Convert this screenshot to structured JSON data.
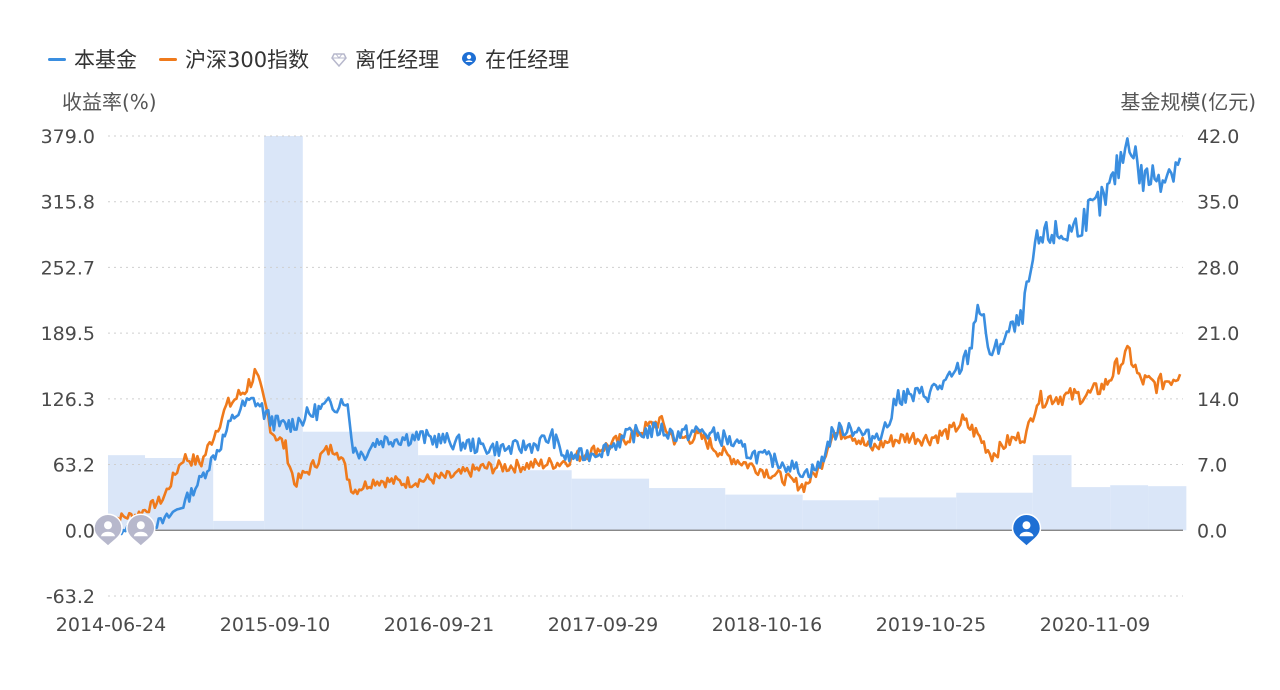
{
  "legend": {
    "fund": "本基金",
    "index": "沪深300指数",
    "former_manager": "离任经理",
    "current_manager": "在任经理"
  },
  "axis_titles": {
    "left": "收益率(%)",
    "right": "基金规模(亿元)"
  },
  "colors": {
    "fund": "#3a8ee0",
    "index": "#ef7a1c",
    "scale_bar": "#dae6f8",
    "former_manager": "#b7b8cc",
    "current_manager": "#1e6fd4",
    "grid": "#cfcfcf"
  },
  "chart_data": {
    "type": "line",
    "x_tick_labels": [
      "2014-06-24",
      "2015-09-10",
      "2016-09-21",
      "2017-09-29",
      "2018-10-16",
      "2019-10-25",
      "2020-11-09"
    ],
    "y_left": {
      "label": "收益率(%)",
      "ticks": [
        "379.0",
        "315.8",
        "252.7",
        "189.5",
        "126.3",
        "63.2",
        "0.0",
        "-63.2"
      ],
      "range": [
        -63.2,
        379.0
      ]
    },
    "y_right": {
      "label": "基金规模(亿元)",
      "ticks": [
        "42.0",
        "35.0",
        "28.0",
        "21.0",
        "14.0",
        "7.0",
        "0.0"
      ],
      "range": [
        -7.0,
        42.0
      ]
    },
    "grid": true,
    "legend_position": "top-left",
    "series": [
      {
        "name": "本基金",
        "kind": "line",
        "points": [
          [
            "2014-06-24",
            0
          ],
          [
            "2014-09-01",
            2
          ],
          [
            "2014-11-01",
            8
          ],
          [
            "2014-12-20",
            25
          ],
          [
            "2015-02-01",
            50
          ],
          [
            "2015-03-15",
            80
          ],
          [
            "2015-04-20",
            110
          ],
          [
            "2015-05-15",
            120
          ],
          [
            "2015-06-10",
            125
          ],
          [
            "2015-07-10",
            108
          ],
          [
            "2015-08-10",
            100
          ],
          [
            "2015-09-10",
            103
          ],
          [
            "2015-10-20",
            112
          ],
          [
            "2015-11-20",
            118
          ],
          [
            "2015-12-20",
            122
          ],
          [
            "2016-01-10",
            128
          ],
          [
            "2016-01-28",
            80
          ],
          [
            "2016-02-20",
            72
          ],
          [
            "2016-03-20",
            85
          ],
          [
            "2016-05-01",
            88
          ],
          [
            "2016-07-01",
            90
          ],
          [
            "2016-09-21",
            85
          ],
          [
            "2016-12-01",
            80
          ],
          [
            "2017-02-01",
            78
          ],
          [
            "2017-04-01",
            82
          ],
          [
            "2017-05-15",
            90
          ],
          [
            "2017-06-15",
            70
          ],
          [
            "2017-08-01",
            72
          ],
          [
            "2017-09-29",
            80
          ],
          [
            "2017-11-15",
            92
          ],
          [
            "2018-01-25",
            97
          ],
          [
            "2018-03-01",
            92
          ],
          [
            "2018-05-01",
            95
          ],
          [
            "2018-07-01",
            88
          ],
          [
            "2018-08-20",
            75
          ],
          [
            "2018-10-16",
            68
          ],
          [
            "2018-12-01",
            62
          ],
          [
            "2019-01-10",
            55
          ],
          [
            "2019-02-10",
            62
          ],
          [
            "2019-03-10",
            92
          ],
          [
            "2019-04-20",
            100
          ],
          [
            "2019-06-10",
            88
          ],
          [
            "2019-07-20",
            100
          ],
          [
            "2019-08-15",
            130
          ],
          [
            "2019-09-15",
            128
          ],
          [
            "2019-10-25",
            132
          ],
          [
            "2019-12-20",
            145
          ],
          [
            "2020-02-01",
            170
          ],
          [
            "2020-02-20",
            220
          ],
          [
            "2020-03-25",
            165
          ],
          [
            "2020-04-20",
            185
          ],
          [
            "2020-06-01",
            200
          ],
          [
            "2020-07-10",
            275
          ],
          [
            "2020-08-10",
            285
          ],
          [
            "2020-09-10",
            283
          ],
          [
            "2020-10-20",
            295
          ],
          [
            "2020-11-09",
            305
          ],
          [
            "2020-12-20",
            318
          ],
          [
            "2021-01-20",
            350
          ],
          [
            "2021-02-15",
            379
          ],
          [
            "2021-03-15",
            338
          ],
          [
            "2021-04-20",
            340
          ],
          [
            "2021-05-20",
            345
          ],
          [
            "2021-06-15",
            358
          ]
        ]
      },
      {
        "name": "沪深300指数",
        "kind": "line",
        "points": [
          [
            "2014-06-24",
            10
          ],
          [
            "2014-09-01",
            15
          ],
          [
            "2014-11-01",
            30
          ],
          [
            "2014-12-20",
            70
          ],
          [
            "2015-02-01",
            65
          ],
          [
            "2015-04-01",
            118
          ],
          [
            "2015-05-15",
            135
          ],
          [
            "2015-06-08",
            150
          ],
          [
            "2015-06-25",
            130
          ],
          [
            "2015-07-20",
            95
          ],
          [
            "2015-08-20",
            80
          ],
          [
            "2015-09-10",
            45
          ],
          [
            "2015-10-20",
            60
          ],
          [
            "2015-11-20",
            75
          ],
          [
            "2015-12-20",
            80
          ],
          [
            "2016-01-28",
            38
          ],
          [
            "2016-03-20",
            48
          ],
          [
            "2016-06-01",
            46
          ],
          [
            "2016-09-21",
            52
          ],
          [
            "2016-12-01",
            60
          ],
          [
            "2017-03-01",
            62
          ],
          [
            "2017-06-01",
            65
          ],
          [
            "2017-09-29",
            82
          ],
          [
            "2017-11-15",
            90
          ],
          [
            "2018-01-25",
            105
          ],
          [
            "2018-03-01",
            88
          ],
          [
            "2018-05-01",
            90
          ],
          [
            "2018-07-01",
            72
          ],
          [
            "2018-09-01",
            62
          ],
          [
            "2018-10-16",
            55
          ],
          [
            "2019-01-03",
            42
          ],
          [
            "2019-02-10",
            60
          ],
          [
            "2019-03-10",
            92
          ],
          [
            "2019-04-20",
            95
          ],
          [
            "2019-06-10",
            78
          ],
          [
            "2019-07-20",
            85
          ],
          [
            "2019-09-10",
            90
          ],
          [
            "2019-10-25",
            88
          ],
          [
            "2019-12-20",
            95
          ],
          [
            "2020-01-15",
            105
          ],
          [
            "2020-02-20",
            92
          ],
          [
            "2020-03-25",
            72
          ],
          [
            "2020-05-01",
            85
          ],
          [
            "2020-06-15",
            92
          ],
          [
            "2020-07-10",
            125
          ],
          [
            "2020-08-20",
            128
          ],
          [
            "2020-11-09",
            130
          ],
          [
            "2020-12-20",
            140
          ],
          [
            "2021-01-20",
            160
          ],
          [
            "2021-02-15",
            170
          ],
          [
            "2021-03-10",
            145
          ],
          [
            "2021-04-20",
            140
          ],
          [
            "2021-05-20",
            145
          ],
          [
            "2021-06-15",
            150
          ]
        ]
      },
      {
        "name": "基金规模",
        "kind": "step-area",
        "axis": "right",
        "steps": [
          [
            "2014-06-24",
            8.0
          ],
          [
            "2014-09-20",
            7.7
          ],
          [
            "2015-03-01",
            1.0
          ],
          [
            "2015-06-30",
            42.0
          ],
          [
            "2015-09-30",
            10.5
          ],
          [
            "2016-06-30",
            8.0
          ],
          [
            "2016-12-31",
            6.4
          ],
          [
            "2017-06-30",
            5.5
          ],
          [
            "2017-12-31",
            4.5
          ],
          [
            "2018-06-30",
            3.8
          ],
          [
            "2018-12-31",
            3.2
          ],
          [
            "2019-06-30",
            3.5
          ],
          [
            "2019-12-31",
            4.0
          ],
          [
            "2020-06-30",
            8.0
          ],
          [
            "2020-09-30",
            4.6
          ],
          [
            "2020-12-31",
            4.8
          ],
          [
            "2021-03-31",
            4.7
          ],
          [
            "2021-06-30",
            4.6
          ]
        ],
        "end": "2021-06-22"
      }
    ],
    "manager_markers": [
      {
        "type": "former",
        "date": "2014-06-24",
        "value": 0
      },
      {
        "type": "former",
        "date": "2014-09-10",
        "value": 0
      },
      {
        "type": "current",
        "date": "2020-06-15",
        "value": 0
      }
    ]
  }
}
